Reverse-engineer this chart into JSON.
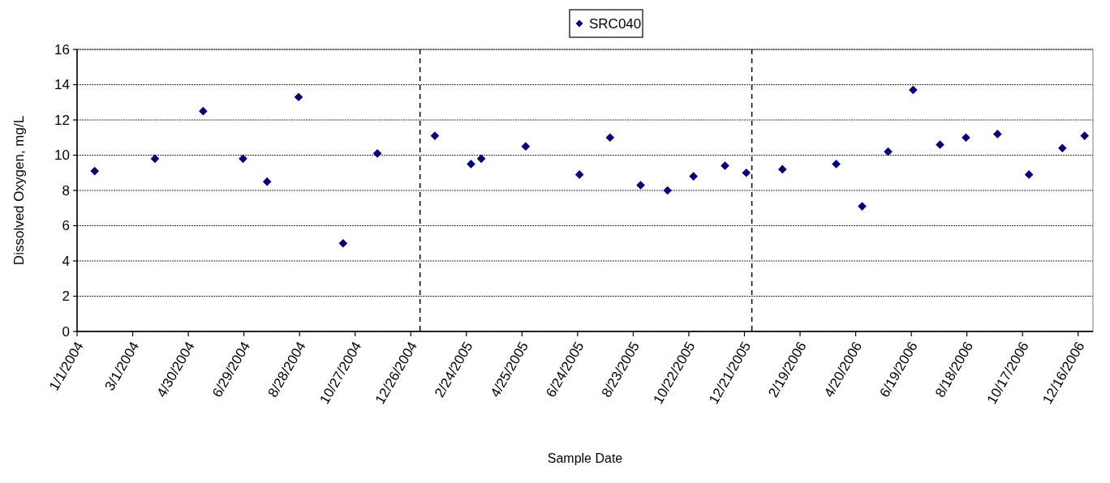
{
  "chart_data": {
    "type": "scatter",
    "xlabel": "Sample Date",
    "ylabel": "Dissolved Oxygen, mg/L",
    "x": [
      "2004-01-20",
      "2004-03-25",
      "2004-05-16",
      "2004-06-28",
      "2004-07-24",
      "2004-08-27",
      "2004-10-14",
      "2004-11-20",
      "2005-01-21",
      "2005-03-01",
      "2005-03-12",
      "2005-04-29",
      "2005-06-26",
      "2005-07-29",
      "2005-08-31",
      "2005-09-29",
      "2005-10-27",
      "2005-11-30",
      "2005-12-23",
      "2006-01-31",
      "2006-03-30",
      "2006-04-27",
      "2006-05-25",
      "2006-06-21",
      "2006-07-20",
      "2006-08-17",
      "2006-09-20",
      "2006-10-24",
      "2006-11-29",
      "2006-12-23"
    ],
    "series": [
      {
        "name": "SRC040",
        "color": "#000080",
        "values": [
          9.1,
          9.8,
          12.5,
          9.8,
          8.5,
          13.3,
          5.0,
          10.1,
          11.1,
          9.5,
          9.8,
          10.5,
          8.9,
          11.0,
          8.3,
          8.0,
          8.8,
          9.4,
          9.0,
          9.2,
          9.5,
          7.1,
          10.2,
          13.7,
          10.6,
          11.0,
          11.2,
          8.9,
          10.4,
          11.1
        ]
      }
    ],
    "xlim": [
      "2004-01-01",
      "2007-01-01"
    ],
    "xticks": [
      {
        "value": "2004-01-01",
        "label": "1/1/2004"
      },
      {
        "value": "2004-03-01",
        "label": "3/1/2004"
      },
      {
        "value": "2004-04-30",
        "label": "4/30/2004"
      },
      {
        "value": "2004-06-29",
        "label": "6/29/2004"
      },
      {
        "value": "2004-08-28",
        "label": "8/28/2004"
      },
      {
        "value": "2004-10-27",
        "label": "10/27/2004"
      },
      {
        "value": "2004-12-26",
        "label": "12/26/2004"
      },
      {
        "value": "2005-02-24",
        "label": "2/24/2005"
      },
      {
        "value": "2005-04-25",
        "label": "4/25/2005"
      },
      {
        "value": "2005-06-24",
        "label": "6/24/2005"
      },
      {
        "value": "2005-08-23",
        "label": "8/23/2005"
      },
      {
        "value": "2005-10-22",
        "label": "10/22/2005"
      },
      {
        "value": "2005-12-21",
        "label": "12/21/2005"
      },
      {
        "value": "2006-02-19",
        "label": "2/19/2006"
      },
      {
        "value": "2006-04-20",
        "label": "4/20/2006"
      },
      {
        "value": "2006-06-19",
        "label": "6/19/2006"
      },
      {
        "value": "2006-08-18",
        "label": "8/18/2006"
      },
      {
        "value": "2006-10-17",
        "label": "10/17/2006"
      },
      {
        "value": "2006-12-16",
        "label": "12/16/2006"
      }
    ],
    "ylim": [
      0,
      16
    ],
    "yticks": [
      0,
      2,
      4,
      6,
      8,
      10,
      12,
      14,
      16
    ],
    "ref_lines": [
      {
        "axis": "x",
        "value": "2005-01-05",
        "color": "#000000",
        "line_style": "dashed"
      },
      {
        "axis": "x",
        "value": "2005-12-29",
        "color": "#000000",
        "line_style": "dashed"
      }
    ],
    "grid": "y",
    "legend": "top",
    "marker": "diamond"
  }
}
